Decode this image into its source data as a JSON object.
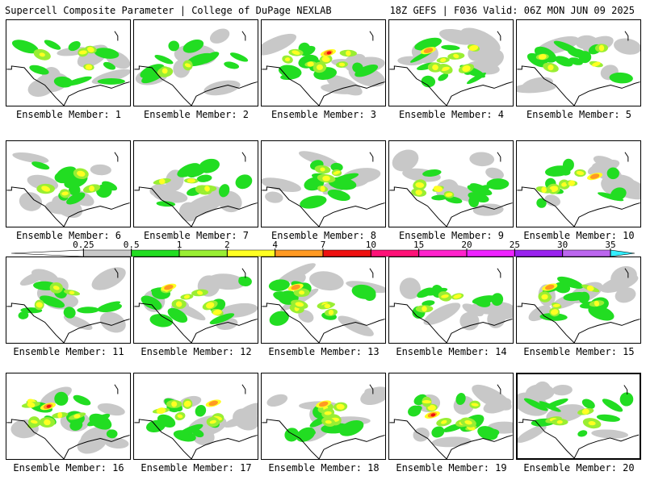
{
  "header": {
    "left_title": "Supercell Composite Parameter | College of DuPage NEXLAB",
    "right_title": "18Z GEFS | F036 Valid: 06Z MON JUN 09 2025"
  },
  "colorbar": {
    "ticks": [
      "0.25",
      "0.5",
      "1",
      "2",
      "4",
      "7",
      "10",
      "15",
      "20",
      "25",
      "30",
      "35"
    ],
    "colors": [
      "#ffffff",
      "#c8c8c8",
      "#22dd22",
      "#99ee33",
      "#ffff22",
      "#ff9922",
      "#ee1111",
      "#ff1177",
      "#ff22cc",
      "#ee22ff",
      "#9922ee",
      "#bb66ee",
      "#33eeff"
    ]
  },
  "panels": [
    {
      "label": "Ensemble Member: 1",
      "intensity": 2,
      "selected": false
    },
    {
      "label": "Ensemble Member: 2",
      "intensity": 1,
      "selected": false
    },
    {
      "label": "Ensemble Member: 3",
      "intensity": 5,
      "selected": false
    },
    {
      "label": "Ensemble Member: 4",
      "intensity": 4,
      "selected": false
    },
    {
      "label": "Ensemble Member: 5",
      "intensity": 2,
      "selected": false
    },
    {
      "label": "Ensemble Member: 6",
      "intensity": 2,
      "selected": false
    },
    {
      "label": "Ensemble Member: 7",
      "intensity": 2,
      "selected": false
    },
    {
      "label": "Ensemble Member: 8",
      "intensity": 2,
      "selected": false
    },
    {
      "label": "Ensemble Member: 9",
      "intensity": 2,
      "selected": false
    },
    {
      "label": "Ensemble Member: 10",
      "intensity": 3,
      "selected": false
    },
    {
      "label": "Ensemble Member: 11",
      "intensity": 1,
      "selected": false
    },
    {
      "label": "Ensemble Member: 12",
      "intensity": 4,
      "selected": false
    },
    {
      "label": "Ensemble Member: 13",
      "intensity": 4,
      "selected": false
    },
    {
      "label": "Ensemble Member: 14",
      "intensity": 1,
      "selected": false
    },
    {
      "label": "Ensemble Member: 15",
      "intensity": 4,
      "selected": false
    },
    {
      "label": "Ensemble Member: 16",
      "intensity": 5,
      "selected": false
    },
    {
      "label": "Ensemble Member: 17",
      "intensity": 4,
      "selected": false
    },
    {
      "label": "Ensemble Member: 18",
      "intensity": 3,
      "selected": false
    },
    {
      "label": "Ensemble Member: 19",
      "intensity": 5,
      "selected": false
    },
    {
      "label": "Ensemble Member: 20",
      "intensity": 2,
      "selected": true
    }
  ]
}
